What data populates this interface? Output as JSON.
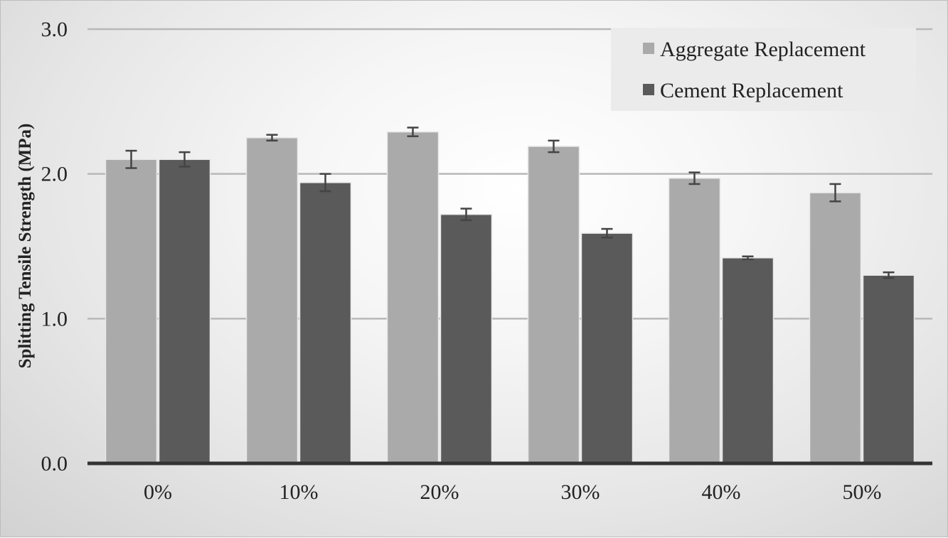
{
  "chart_data": {
    "type": "bar",
    "title": "",
    "xlabel": "",
    "ylabel": "Splitting Tensile  Strength (MPa)",
    "ylim": [
      0,
      3
    ],
    "yticks": [
      "0.0",
      "1.0",
      "2.0",
      "3.0"
    ],
    "ytick_values": [
      0,
      1,
      2,
      3
    ],
    "categories": [
      "0%",
      "10%",
      "20%",
      "30%",
      "40%",
      "50%"
    ],
    "grid": true,
    "legend_position": "top-right",
    "series": [
      {
        "name": "Aggregate Replacement",
        "color": "#aaaaaa",
        "values": [
          2.1,
          2.25,
          2.29,
          2.19,
          1.97,
          1.87
        ],
        "errors": [
          0.06,
          0.02,
          0.03,
          0.04,
          0.04,
          0.06
        ]
      },
      {
        "name": "Cement Replacement",
        "color": "#5a5a5a",
        "values": [
          2.1,
          1.94,
          1.72,
          1.59,
          1.42,
          1.3
        ],
        "errors": [
          0.05,
          0.06,
          0.04,
          0.03,
          0.01,
          0.02
        ]
      }
    ]
  }
}
